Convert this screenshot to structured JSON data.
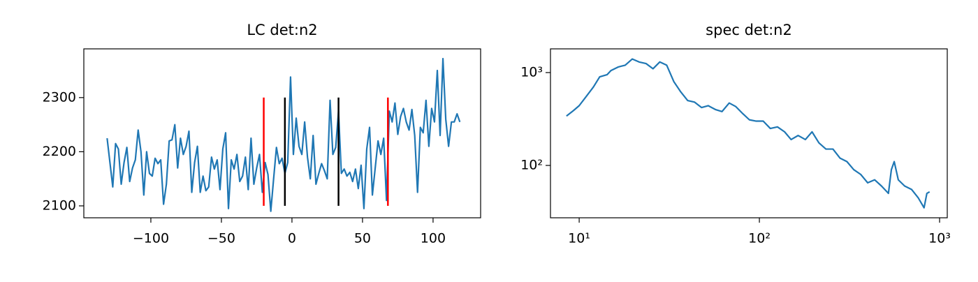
{
  "chart_data": [
    {
      "type": "line",
      "title": "LC det:n2",
      "x": [
        -131,
        -129,
        -127,
        -125,
        -123,
        -121,
        -119,
        -117,
        -115,
        -113,
        -111,
        -109,
        -107,
        -105,
        -103,
        -101,
        -99,
        -97,
        -95,
        -93,
        -91,
        -89,
        -87,
        -85,
        -83,
        -81,
        -79,
        -77,
        -75,
        -73,
        -71,
        -69,
        -67,
        -65,
        -63,
        -61,
        -59,
        -57,
        -55,
        -53,
        -51,
        -49,
        -47,
        -45,
        -43,
        -41,
        -39,
        -37,
        -35,
        -33,
        -31,
        -29,
        -27,
        -25,
        -23,
        -21,
        -19,
        -17,
        -15,
        -13,
        -11,
        -9,
        -7,
        -5,
        -3,
        -1,
        1,
        3,
        5,
        7,
        9,
        11,
        13,
        15,
        17,
        19,
        21,
        23,
        25,
        27,
        29,
        31,
        33,
        35,
        37,
        39,
        41,
        43,
        45,
        47,
        49,
        51,
        53,
        55,
        57,
        59,
        61,
        63,
        65,
        67,
        69,
        71,
        73,
        75,
        77,
        79,
        81,
        83,
        85,
        87,
        89,
        91,
        93,
        95,
        97,
        99,
        101,
        103,
        105,
        107,
        109,
        111,
        113,
        115,
        117,
        119
      ],
      "series": [
        {
          "color": "#1f77b4",
          "values": [
            2225,
            2180,
            2135,
            2215,
            2205,
            2140,
            2180,
            2208,
            2145,
            2170,
            2185,
            2240,
            2200,
            2120,
            2200,
            2160,
            2155,
            2188,
            2178,
            2185,
            2103,
            2140,
            2220,
            2222,
            2250,
            2170,
            2225,
            2195,
            2210,
            2238,
            2125,
            2180,
            2210,
            2125,
            2155,
            2128,
            2135,
            2190,
            2168,
            2185,
            2130,
            2205,
            2235,
            2095,
            2185,
            2168,
            2195,
            2145,
            2155,
            2190,
            2130,
            2225,
            2140,
            2170,
            2195,
            2125,
            2180,
            2158,
            2090,
            2150,
            2208,
            2178,
            2188,
            2160,
            2180,
            2338,
            2195,
            2262,
            2210,
            2195,
            2255,
            2190,
            2150,
            2230,
            2140,
            2160,
            2178,
            2165,
            2150,
            2295,
            2195,
            2208,
            2275,
            2160,
            2168,
            2155,
            2162,
            2145,
            2168,
            2132,
            2175,
            2095,
            2205,
            2245,
            2120,
            2170,
            2220,
            2195,
            2225,
            2110,
            2275,
            2255,
            2290,
            2232,
            2265,
            2280,
            2255,
            2240,
            2278,
            2230,
            2125,
            2245,
            2235,
            2295,
            2210,
            2280,
            2255,
            2350,
            2230,
            2372,
            2260,
            2210,
            2255,
            2255,
            2270,
            2255
          ]
        }
      ],
      "vlines": [
        {
          "x": -20,
          "ymin": 2100,
          "ymax": 2300,
          "color": "#ff0000"
        },
        {
          "x": -5,
          "ymin": 2100,
          "ymax": 2300,
          "color": "#000000"
        },
        {
          "x": 33,
          "ymin": 2100,
          "ymax": 2300,
          "color": "#000000"
        },
        {
          "x": 68,
          "ymin": 2100,
          "ymax": 2300,
          "color": "#ff0000"
        }
      ],
      "xlim": [
        -147.5,
        133.7
      ],
      "ylim": [
        2078,
        2390
      ],
      "xticks": [
        {
          "value": -100,
          "label": "−100"
        },
        {
          "value": -50,
          "label": "−50"
        },
        0,
        50,
        100
      ],
      "yticks": [
        2100,
        2200,
        2300
      ],
      "xlog": false,
      "ylog": false
    },
    {
      "type": "line",
      "title": "spec det:n2",
      "x": [
        8.5,
        9.3,
        10,
        11,
        12,
        13,
        14.3,
        15,
        16.5,
        18,
        19.7,
        21.5,
        23.5,
        25.7,
        28,
        30.6,
        33.5,
        36.6,
        40,
        43.7,
        47.8,
        52,
        57,
        62,
        68,
        74,
        81,
        88,
        96,
        105,
        115,
        126,
        138,
        150,
        164,
        180,
        196,
        214,
        234,
        256,
        280,
        306,
        334,
        365,
        399,
        436,
        476,
        520,
        540,
        560,
        590,
        640,
        700,
        760,
        820,
        850,
        880
      ],
      "series": [
        {
          "color": "#1f77b4",
          "values": [
            340,
            390,
            440,
            560,
            700,
            900,
            950,
            1050,
            1150,
            1200,
            1400,
            1300,
            1250,
            1100,
            1300,
            1200,
            800,
            620,
            500,
            480,
            420,
            440,
            400,
            380,
            470,
            430,
            360,
            310,
            300,
            300,
            250,
            260,
            230,
            190,
            210,
            190,
            230,
            175,
            150,
            150,
            120,
            110,
            90,
            80,
            65,
            70,
            60,
            50,
            90,
            110,
            70,
            60,
            55,
            45,
            35,
            50,
            52
          ]
        }
      ],
      "xlim": [
        6.93,
        1103
      ],
      "ylim": [
        27.3,
        1800
      ],
      "xticks": [
        {
          "value": 10,
          "label": "10¹"
        },
        {
          "value": 100,
          "label": "10²"
        },
        {
          "value": 1000,
          "label": "10³"
        }
      ],
      "yticks": [
        {
          "value": 100,
          "label": "10²"
        },
        {
          "value": 1000,
          "label": "10³"
        }
      ],
      "xlog": true,
      "ylog": true
    }
  ]
}
